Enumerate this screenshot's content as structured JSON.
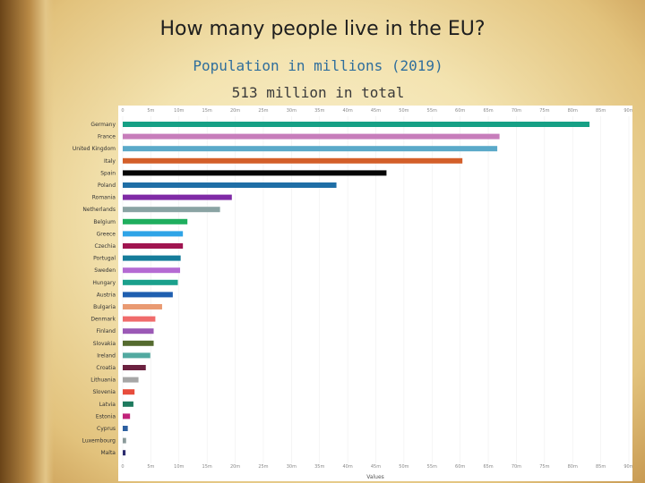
{
  "title": "How many people live in the EU?",
  "subtitle": "Population in millions (2019)",
  "total_text": "513 million in total",
  "chart_data": {
    "type": "bar",
    "orientation": "horizontal",
    "title": "How many people live in the EU?",
    "subtitle": "Population in millions (2019)",
    "xlabel": "Values",
    "ylabel": "",
    "xlim": [
      0,
      90
    ],
    "grid": true,
    "tick_values": [
      0,
      5,
      10,
      15,
      20,
      25,
      30,
      35,
      40,
      45,
      50,
      55,
      60,
      65,
      70,
      75,
      80,
      85,
      90
    ],
    "tick_labels_top": [
      "0",
      "5m",
      "10m",
      "15m",
      "20m",
      "25m",
      "30m",
      "35m",
      "40m",
      "45m",
      "50m",
      "55m",
      "60m",
      "65m",
      "70m",
      "75m",
      "80m",
      "85m",
      "90m"
    ],
    "tick_labels_bottom": [
      "0",
      "5m",
      "10m",
      "15m",
      "20m",
      "25m",
      "30m",
      "35m",
      "40m",
      "45m",
      "50m",
      "55m",
      "60m",
      "65m",
      "70m",
      "75m",
      "80m",
      "85m",
      "90m"
    ],
    "categories": [
      "Germany",
      "France",
      "United Kingdom",
      "Italy",
      "Spain",
      "Poland",
      "Romania",
      "Netherlands",
      "Belgium",
      "Greece",
      "Czechia",
      "Portugal",
      "Sweden",
      "Hungary",
      "Austria",
      "Bulgaria",
      "Denmark",
      "Finland",
      "Slovakia",
      "Ireland",
      "Croatia",
      "Lithuania",
      "Slovenia",
      "Latvia",
      "Estonia",
      "Cyprus",
      "Luxembourg",
      "Malta"
    ],
    "values": [
      83.0,
      67.0,
      66.6,
      60.4,
      46.9,
      38.0,
      19.4,
      17.3,
      11.5,
      10.7,
      10.7,
      10.3,
      10.2,
      9.8,
      8.9,
      7.0,
      5.8,
      5.5,
      5.5,
      4.9,
      4.1,
      2.8,
      2.1,
      1.9,
      1.3,
      0.9,
      0.6,
      0.5
    ],
    "colors": [
      "#16a085",
      "#c77dbb",
      "#5aa9c9",
      "#d35f2a",
      "#050505",
      "#1f6ea6",
      "#7f2aa6",
      "#8aa3a3",
      "#1fae5e",
      "#2fa4e7",
      "#a01550",
      "#157c9a",
      "#b56ad3",
      "#1aa08c",
      "#1f5fb0",
      "#e99a72",
      "#f06b6b",
      "#9b59b6",
      "#556b2f",
      "#52a9a0",
      "#6b2140",
      "#a6a6a6",
      "#e74c3c",
      "#1e7a5e",
      "#c0237a",
      "#2c5fa0",
      "#8a9a9a",
      "#2b2b6e"
    ]
  }
}
